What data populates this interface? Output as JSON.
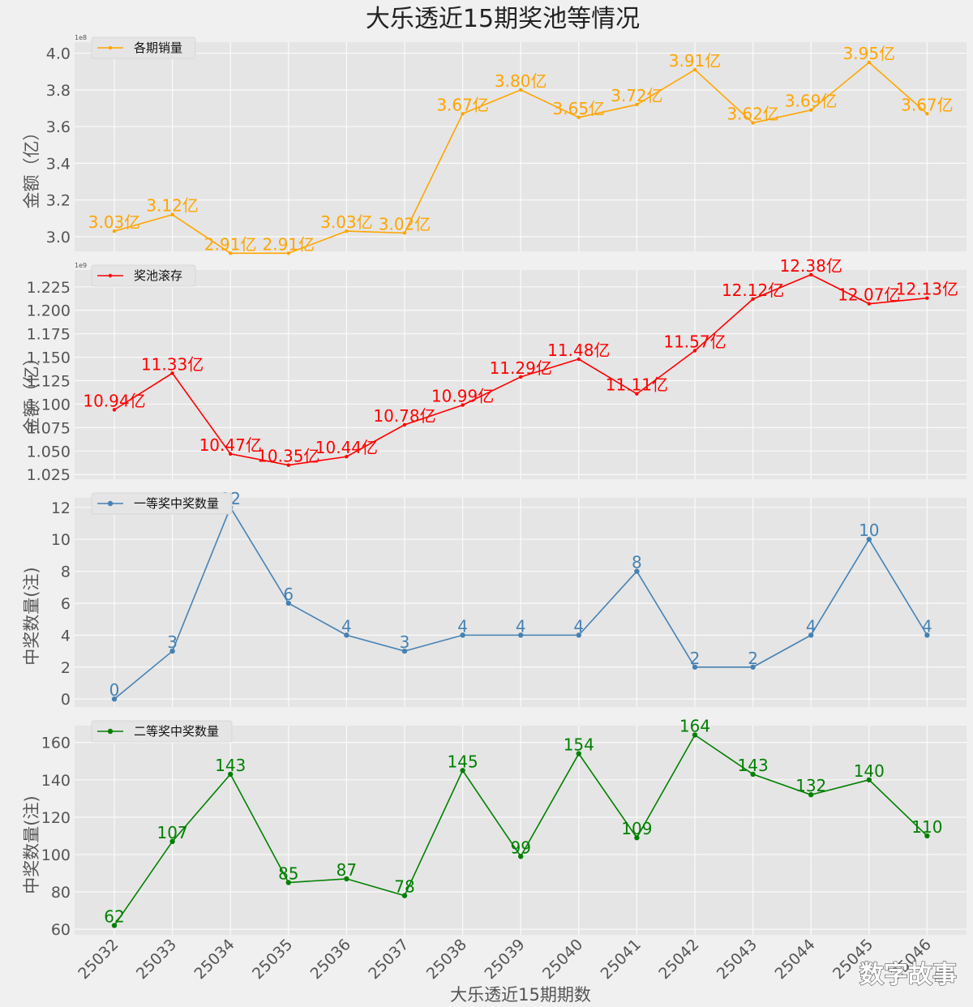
{
  "chart_data": {
    "type": "line",
    "title": "大乐透近15期奖池等情况",
    "xlabel": "大乐透近15期期数",
    "categories": [
      "25032",
      "25033",
      "25034",
      "25035",
      "25036",
      "25037",
      "25038",
      "25039",
      "25040",
      "25041",
      "25042",
      "25043",
      "25044",
      "25045",
      "25046"
    ],
    "panels": [
      {
        "legend": "各期销量",
        "color": "#ffa500",
        "ylabel": "金额（亿）",
        "scale_label": "1e8",
        "ylim": [
          292000000.0,
          406000000.0
        ],
        "yticks": [
          300000000.0,
          320000000.0,
          340000000.0,
          360000000.0,
          380000000.0,
          400000000.0
        ],
        "yticklabels": [
          "3.0",
          "3.2",
          "3.4",
          "3.6",
          "3.8",
          "4.0"
        ],
        "values": [
          303000000.0,
          312000000.0,
          291000000.0,
          291000000.0,
          303000000.0,
          302000000.0,
          367000000.0,
          380000000.0,
          365000000.0,
          372000000.0,
          391000000.0,
          362000000.0,
          369000000.0,
          395000000.0,
          367000000.0
        ],
        "labels": [
          "3.03亿",
          "3.12亿",
          "2.91亿",
          "2.91亿",
          "3.03亿",
          "3.02亿",
          "3.67亿",
          "3.80亿",
          "3.65亿",
          "3.72亿",
          "3.91亿",
          "3.62亿",
          "3.69亿",
          "3.95亿",
          "3.67亿"
        ]
      },
      {
        "legend": "奖池滚存",
        "color": "#ff0000",
        "ylabel": "金额（亿）",
        "scale_label": "1e9",
        "ylim": [
          1020000000.0,
          1243000000.0
        ],
        "yticks": [
          1025000000.0,
          1050000000.0,
          1075000000.0,
          1100000000.0,
          1125000000.0,
          1150000000.0,
          1175000000.0,
          1200000000.0,
          1225000000.0
        ],
        "yticklabels": [
          "1.025",
          "1.050",
          "1.075",
          "1.100",
          "1.125",
          "1.150",
          "1.175",
          "1.200",
          "1.225"
        ],
        "values": [
          1094000000.0,
          1133000000.0,
          1047000000.0,
          1035000000.0,
          1044000000.0,
          1078000000.0,
          1099000000.0,
          1129000000.0,
          1148000000.0,
          1111000000.0,
          1157000000.0,
          1212000000.0,
          1238000000.0,
          1207000000.0,
          1213000000.0
        ],
        "labels": [
          "10.94亿",
          "11.33亿",
          "10.47亿",
          "10.35亿",
          "10.44亿",
          "10.78亿",
          "10.99亿",
          "11.29亿",
          "11.48亿",
          "11.11亿",
          "11.57亿",
          "12.12亿",
          "12.38亿",
          "12.07亿",
          "12.13亿"
        ]
      },
      {
        "legend": "一等奖中奖数量",
        "color": "#4682b4",
        "ylabel": "中奖数量(注)",
        "ylim": [
          -0.5,
          12.6
        ],
        "yticks": [
          0,
          2,
          4,
          6,
          8,
          10,
          12
        ],
        "yticklabels": [
          "0",
          "2",
          "4",
          "6",
          "8",
          "10",
          "12"
        ],
        "values": [
          0,
          3,
          12,
          6,
          4,
          3,
          4,
          4,
          4,
          8,
          2,
          2,
          4,
          10,
          4
        ],
        "labels": [
          "0",
          "3",
          "12",
          "6",
          "4",
          "3",
          "4",
          "4",
          "4",
          "8",
          "2",
          "2",
          "4",
          "10",
          "4"
        ]
      },
      {
        "legend": "二等奖中奖数量",
        "color": "#008000",
        "ylabel": "中奖数量(注)",
        "ylim": [
          57,
          169
        ],
        "yticks": [
          60,
          80,
          100,
          120,
          140,
          160
        ],
        "yticklabels": [
          "60",
          "80",
          "100",
          "120",
          "140",
          "160"
        ],
        "values": [
          62,
          107,
          143,
          85,
          87,
          78,
          145,
          99,
          154,
          109,
          164,
          143,
          132,
          140,
          110
        ],
        "labels": [
          "62",
          "107",
          "143",
          "85",
          "87",
          "78",
          "145",
          "99",
          "154",
          "109",
          "164",
          "143",
          "132",
          "140",
          "110"
        ]
      }
    ]
  },
  "watermark": "数字故事"
}
